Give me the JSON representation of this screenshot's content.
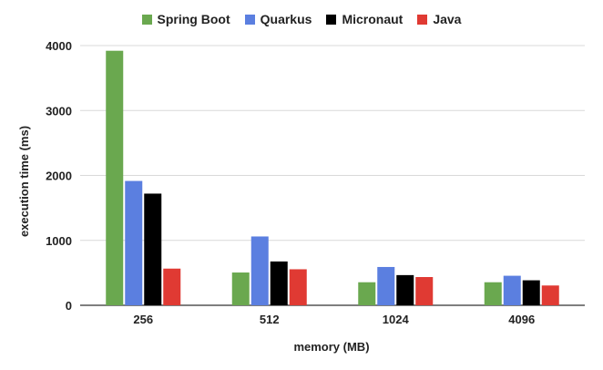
{
  "chart_data": {
    "type": "bar",
    "categories": [
      "256",
      "512",
      "1024",
      "4096"
    ],
    "series": [
      {
        "name": "Spring Boot",
        "color": "#6aa84f",
        "values": [
          3920,
          505,
          355,
          355
        ]
      },
      {
        "name": "Quarkus",
        "color": "#5b7fe0",
        "values": [
          1915,
          1060,
          590,
          455
        ]
      },
      {
        "name": "Micronaut",
        "color": "#000000",
        "values": [
          1720,
          675,
          465,
          385
        ]
      },
      {
        "name": "Java",
        "color": "#e03a33",
        "values": [
          565,
          555,
          435,
          305
        ]
      }
    ],
    "xlabel": "memory (MB)",
    "ylabel": "execution time (ms)",
    "ylim": [
      0,
      4000
    ],
    "yticks": [
      "0",
      "1000",
      "2000",
      "3000",
      "4000"
    ],
    "grid": true,
    "legend": "top"
  }
}
